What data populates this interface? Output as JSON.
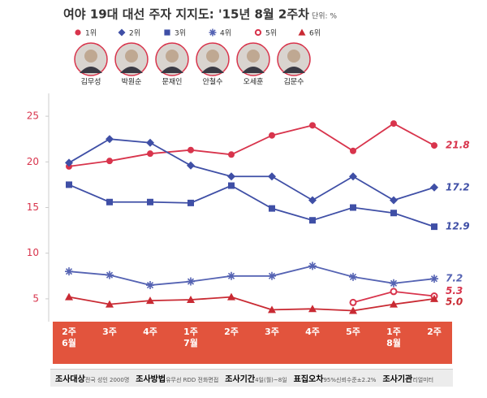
{
  "chart_data": {
    "type": "line",
    "title": "여야 19대 대선 주자 지지도: '15년 8월 2주차",
    "unit": "단위: %",
    "candidates": [
      "김무성",
      "박원순",
      "문재인",
      "안철수",
      "오세훈",
      "김문수"
    ],
    "categories": [
      "2주\n6월",
      "3주",
      "4주",
      "1주\n7월",
      "2주",
      "3주",
      "4주",
      "5주",
      "1주\n8월",
      "2주"
    ],
    "ylim": [
      2.5,
      27.5
    ],
    "yticks": [
      5,
      10,
      15,
      20,
      25
    ],
    "grid": false,
    "series": [
      {
        "name": "1위",
        "color": "#d8344c",
        "marker": "circle",
        "values": [
          19.5,
          20.1,
          20.9,
          21.3,
          20.8,
          22.9,
          24.0,
          21.2,
          24.2,
          21.8
        ],
        "value_labels": [
          null,
          null,
          null,
          null,
          null,
          null,
          null,
          null,
          null,
          "21.8"
        ]
      },
      {
        "name": "2위",
        "color": "#3f4fa6",
        "marker": "diamond",
        "values": [
          19.9,
          22.5,
          22.1,
          19.6,
          18.4,
          18.4,
          15.8,
          18.4,
          15.8,
          17.2
        ],
        "value_labels": [
          null,
          null,
          null,
          null,
          null,
          null,
          null,
          null,
          null,
          "17.2"
        ]
      },
      {
        "name": "3위",
        "color": "#3f4fa6",
        "marker": "square",
        "values": [
          17.5,
          15.6,
          15.6,
          15.5,
          17.4,
          14.9,
          13.6,
          15.0,
          14.4,
          12.9
        ],
        "value_labels": [
          null,
          null,
          null,
          null,
          null,
          null,
          null,
          null,
          null,
          "12.9"
        ]
      },
      {
        "name": "4위",
        "color": "#5563b3",
        "marker": "asterisk",
        "values": [
          8.0,
          7.6,
          6.5,
          6.9,
          7.5,
          7.5,
          8.6,
          7.4,
          6.7,
          7.2
        ],
        "value_labels": [
          null,
          null,
          null,
          null,
          null,
          null,
          null,
          null,
          null,
          "7.2"
        ]
      },
      {
        "name": "5위",
        "color": "#d8344c",
        "marker": "open-circle",
        "values": [
          null,
          null,
          null,
          null,
          null,
          null,
          null,
          4.6,
          5.8,
          5.3
        ],
        "value_labels": [
          null,
          null,
          null,
          null,
          null,
          null,
          null,
          null,
          null,
          "5.3"
        ]
      },
      {
        "name": "6위",
        "color": "#c92a33",
        "marker": "triangle",
        "values": [
          5.2,
          4.4,
          4.8,
          4.9,
          5.2,
          3.8,
          3.9,
          3.7,
          4.4,
          5.0
        ],
        "value_labels": [
          null,
          null,
          null,
          null,
          null,
          null,
          null,
          null,
          null,
          "5.0"
        ]
      }
    ],
    "footer": [
      {
        "label": "조사대상",
        "text": "전국 성인 2000명"
      },
      {
        "label": "조사방법",
        "text": "유무선 RDD 전화면접"
      },
      {
        "label": "조사기간",
        "text": "4일(월)~8일"
      },
      {
        "label": "표집오차",
        "text": "95%신뢰수준±2.2%"
      },
      {
        "label": "조사기관",
        "text": "리얼미터"
      }
    ]
  }
}
